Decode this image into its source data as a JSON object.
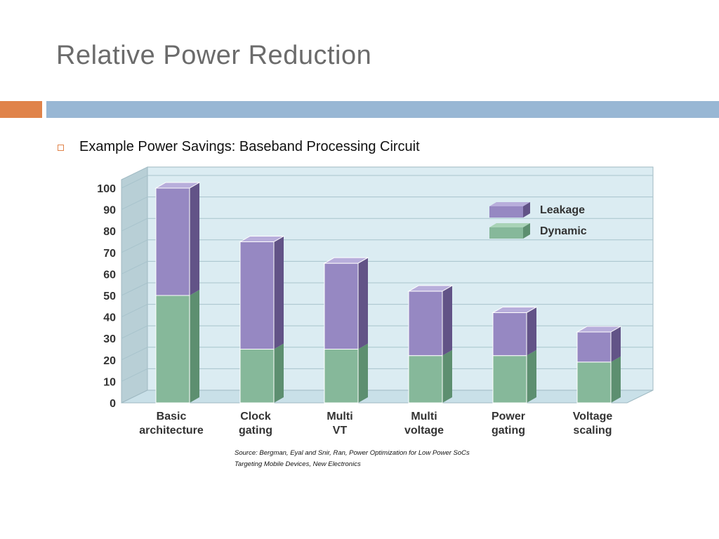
{
  "slide": {
    "title": "Relative Power Reduction",
    "bullet": "Example Power Savings: Baseband Processing Circuit",
    "source_line1": "Source: Bergman, Eyal and Snir, Ran, Power Optimization for Low Power SoCs",
    "source_line2": "Targeting Mobile Devices, New Electronics"
  },
  "colors": {
    "title": "#6b6b6b",
    "accent_orange": "#e0834a",
    "accent_blue": "#98b7d4",
    "plot_bg": "#dbecf2",
    "wall_side": "#b8cfd6",
    "floor": "#c9e0e8",
    "leakage": "#9688c2",
    "leakage_dark": "#625387",
    "leakage_top": "#b8aedb",
    "dynamic": "#86b89a",
    "dynamic_dark": "#5d8f70",
    "dynamic_top": "#a9d3b7"
  },
  "chart_data": {
    "type": "bar",
    "stacked": true,
    "categories": [
      "Basic\narchitecture",
      "Clock\ngating",
      "Multi\nVT",
      "Multi\nvoltage",
      "Power\ngating",
      "Voltage\nscaling"
    ],
    "series": [
      {
        "name": "Dynamic",
        "values": [
          50,
          25,
          25,
          22,
          22,
          19
        ]
      },
      {
        "name": "Leakage",
        "values": [
          50,
          50,
          40,
          30,
          20,
          14
        ]
      }
    ],
    "ylim": [
      0,
      100
    ],
    "yticks": [
      0,
      10,
      20,
      30,
      40,
      50,
      60,
      70,
      80,
      90,
      100
    ],
    "grid": true,
    "legend_position": "top-right",
    "style": "3d"
  }
}
